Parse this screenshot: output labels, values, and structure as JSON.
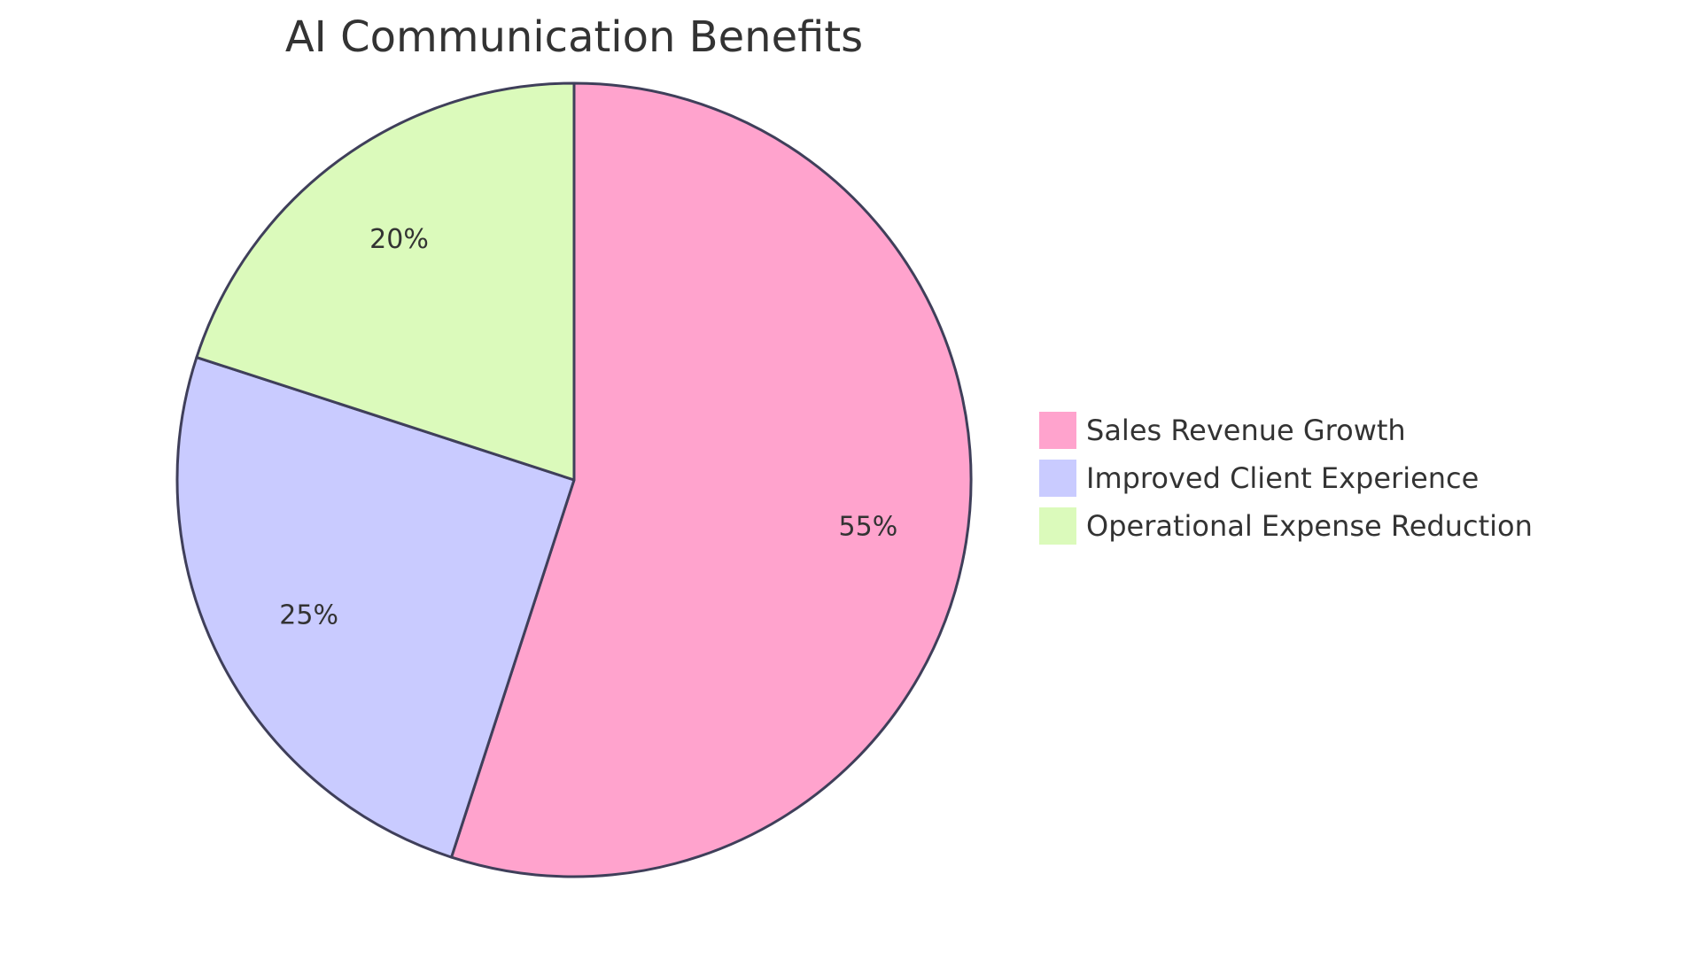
{
  "chart_data": {
    "type": "pie",
    "title": "AI Communication Benefits",
    "categories": [
      "Sales Revenue Growth",
      "Improved Client Experience",
      "Operational Expense Reduction"
    ],
    "values": [
      55,
      25,
      20
    ],
    "value_labels": [
      "55%",
      "25%",
      "20%"
    ],
    "colors": [
      "#FFA3CD",
      "#C9CBFF",
      "#DBFABB"
    ],
    "stroke_color": "#3F3F5A",
    "legend_position": "right"
  }
}
